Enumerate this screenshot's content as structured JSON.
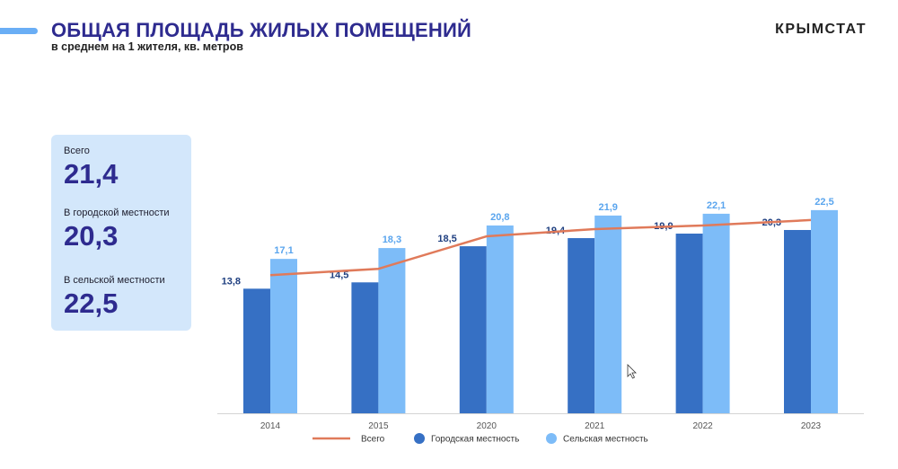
{
  "header": {
    "title": "ОБЩАЯ ПЛОЩАДЬ ЖИЛЫХ ПОМЕЩЕНИЙ",
    "subtitle": "в среднем на 1 жителя, кв. метров",
    "brand": "КРЫМСТАТ"
  },
  "summary": {
    "total_label": "Всего",
    "total_value": "21,4",
    "urban_label": "В городской местности",
    "urban_value": "20,3",
    "rural_label": "В сельской местности",
    "rural_value": "22,5"
  },
  "colors": {
    "title": "#2e2b8f",
    "urban": "#3670c4",
    "rural": "#7dbcf8",
    "total_line": "#e07a5a",
    "rural_label": "#5aa5ee",
    "urban_label": "#1f3f80",
    "card_bg": "#d3e7fb",
    "accent": "#6aaef5"
  },
  "chart_data": {
    "type": "bar",
    "categories": [
      "2014",
      "2015",
      "2020",
      "2021",
      "2022",
      "2023"
    ],
    "series": [
      {
        "name": "Городская местность",
        "type": "bar",
        "values": [
          13.8,
          14.5,
          18.5,
          19.4,
          19.9,
          20.3
        ],
        "labels": [
          "13,8",
          "14,5",
          "18,5",
          "19,4",
          "19,9",
          "20,3"
        ]
      },
      {
        "name": "Сельская местность",
        "type": "bar",
        "values": [
          17.1,
          18.3,
          20.8,
          21.9,
          22.1,
          22.5
        ],
        "labels": [
          "17,1",
          "18,3",
          "20,8",
          "21,9",
          "22,1",
          "22,5"
        ]
      },
      {
        "name": "Всего",
        "type": "line",
        "values": [
          15.3,
          16.0,
          19.6,
          20.4,
          20.8,
          21.4
        ]
      }
    ],
    "ylim": [
      0,
      23
    ],
    "grid": false,
    "legend": "bottom",
    "legend_order": [
      "Всего",
      "Городская местность",
      "Сельская местность"
    ]
  }
}
